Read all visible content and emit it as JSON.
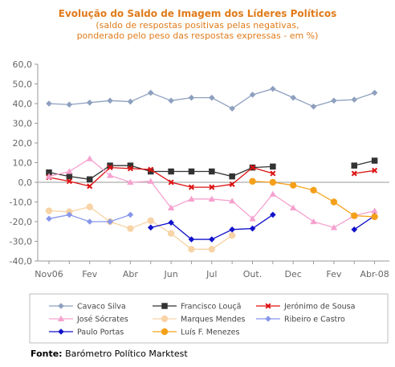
{
  "chart_data": {
    "type": "line",
    "title": "Evolução do Saldo  de Imagem dos Líderes Políticos",
    "subtitle_lines": [
      "(saldo de respostas positivas pelas negativas,",
      "ponderado pelo peso das respostas expressas - em %)"
    ],
    "ylim": [
      -40,
      60
    ],
    "yticks": [
      "60,0",
      "50,0",
      "40,0",
      "30,0",
      "20,0",
      "10,0",
      "0,0",
      "-10,0",
      "-20,0",
      "-30,0",
      "-40,0"
    ],
    "x_labels": [
      "Nov06",
      "Fev",
      "Abr",
      "Jun",
      "Jul",
      "Out.",
      "Dec",
      "Fev",
      "Abr-08"
    ],
    "n_points": 17,
    "grid": false,
    "legend_position": "bottom",
    "colors": {
      "title": "#e07b1a",
      "subtitle": "#e07b1a",
      "axis": "#9a9a9a",
      "tick_text": "#666666"
    },
    "series": [
      {
        "name": "Cavaco Silva",
        "color": "#8ea0bf",
        "marker": "diamond",
        "values": [
          40,
          39.5,
          40.5,
          41.5,
          41,
          45.5,
          41.5,
          43,
          43,
          37.5,
          44.5,
          47.5,
          43,
          38.5,
          41.5,
          42,
          45.5
        ]
      },
      {
        "name": "Francisco Louçã",
        "color": "#333333",
        "marker": "square",
        "values": [
          5,
          3,
          1.5,
          8.5,
          8.5,
          5.5,
          5.5,
          5.5,
          5.5,
          3,
          7.5,
          8,
          null,
          null,
          null,
          8.5,
          11
        ]
      },
      {
        "name": "Jerónimo de Sousa",
        "color": "#dd1111",
        "marker": "x",
        "values": [
          2.5,
          0.5,
          -2,
          7.5,
          7,
          6.5,
          0,
          -2.5,
          -2.5,
          -1,
          7.5,
          4.5,
          null,
          null,
          null,
          4.5,
          6
        ]
      },
      {
        "name": "José Sócrates",
        "color": "#f6a2cf",
        "marker": "triangle",
        "values": [
          3,
          5.5,
          12,
          3.5,
          0,
          0.5,
          -13,
          -8.5,
          -8.5,
          -9.5,
          -18.5,
          -6,
          -13,
          -20,
          -23,
          -17,
          -14.5
        ]
      },
      {
        "name": "Marques Mendes",
        "color": "#f7d3a6",
        "marker": "circle",
        "values": [
          -14.5,
          -15,
          -12.5,
          -20,
          -23.5,
          -19.5,
          -26,
          -34,
          -34,
          -27,
          null,
          null,
          null,
          null,
          null,
          null,
          null
        ]
      },
      {
        "name": "Ribeiro e Castro",
        "color": "#8797ec",
        "marker": "diamond",
        "values": [
          -18.5,
          -16.5,
          -20,
          -20,
          -16.5,
          null,
          null,
          null,
          null,
          null,
          null,
          null,
          null,
          null,
          null,
          null,
          null
        ]
      },
      {
        "name": "Paulo Portas",
        "color": "#1111cc",
        "marker": "diamond",
        "values": [
          null,
          null,
          null,
          null,
          null,
          -23,
          -20.5,
          -29,
          -29,
          -24,
          -23.5,
          -16.5,
          null,
          null,
          null,
          -24,
          -17
        ]
      },
      {
        "name": "Luís F. Menezes",
        "color": "#f5a01a",
        "marker": "circle",
        "values": [
          null,
          null,
          null,
          null,
          null,
          null,
          null,
          null,
          null,
          null,
          0.5,
          0,
          -1.5,
          -4,
          -10,
          -17,
          -17.5
        ]
      }
    ]
  },
  "footer": {
    "source_label": "Fonte:",
    "source_text": " Barómetro Político Marktest"
  }
}
